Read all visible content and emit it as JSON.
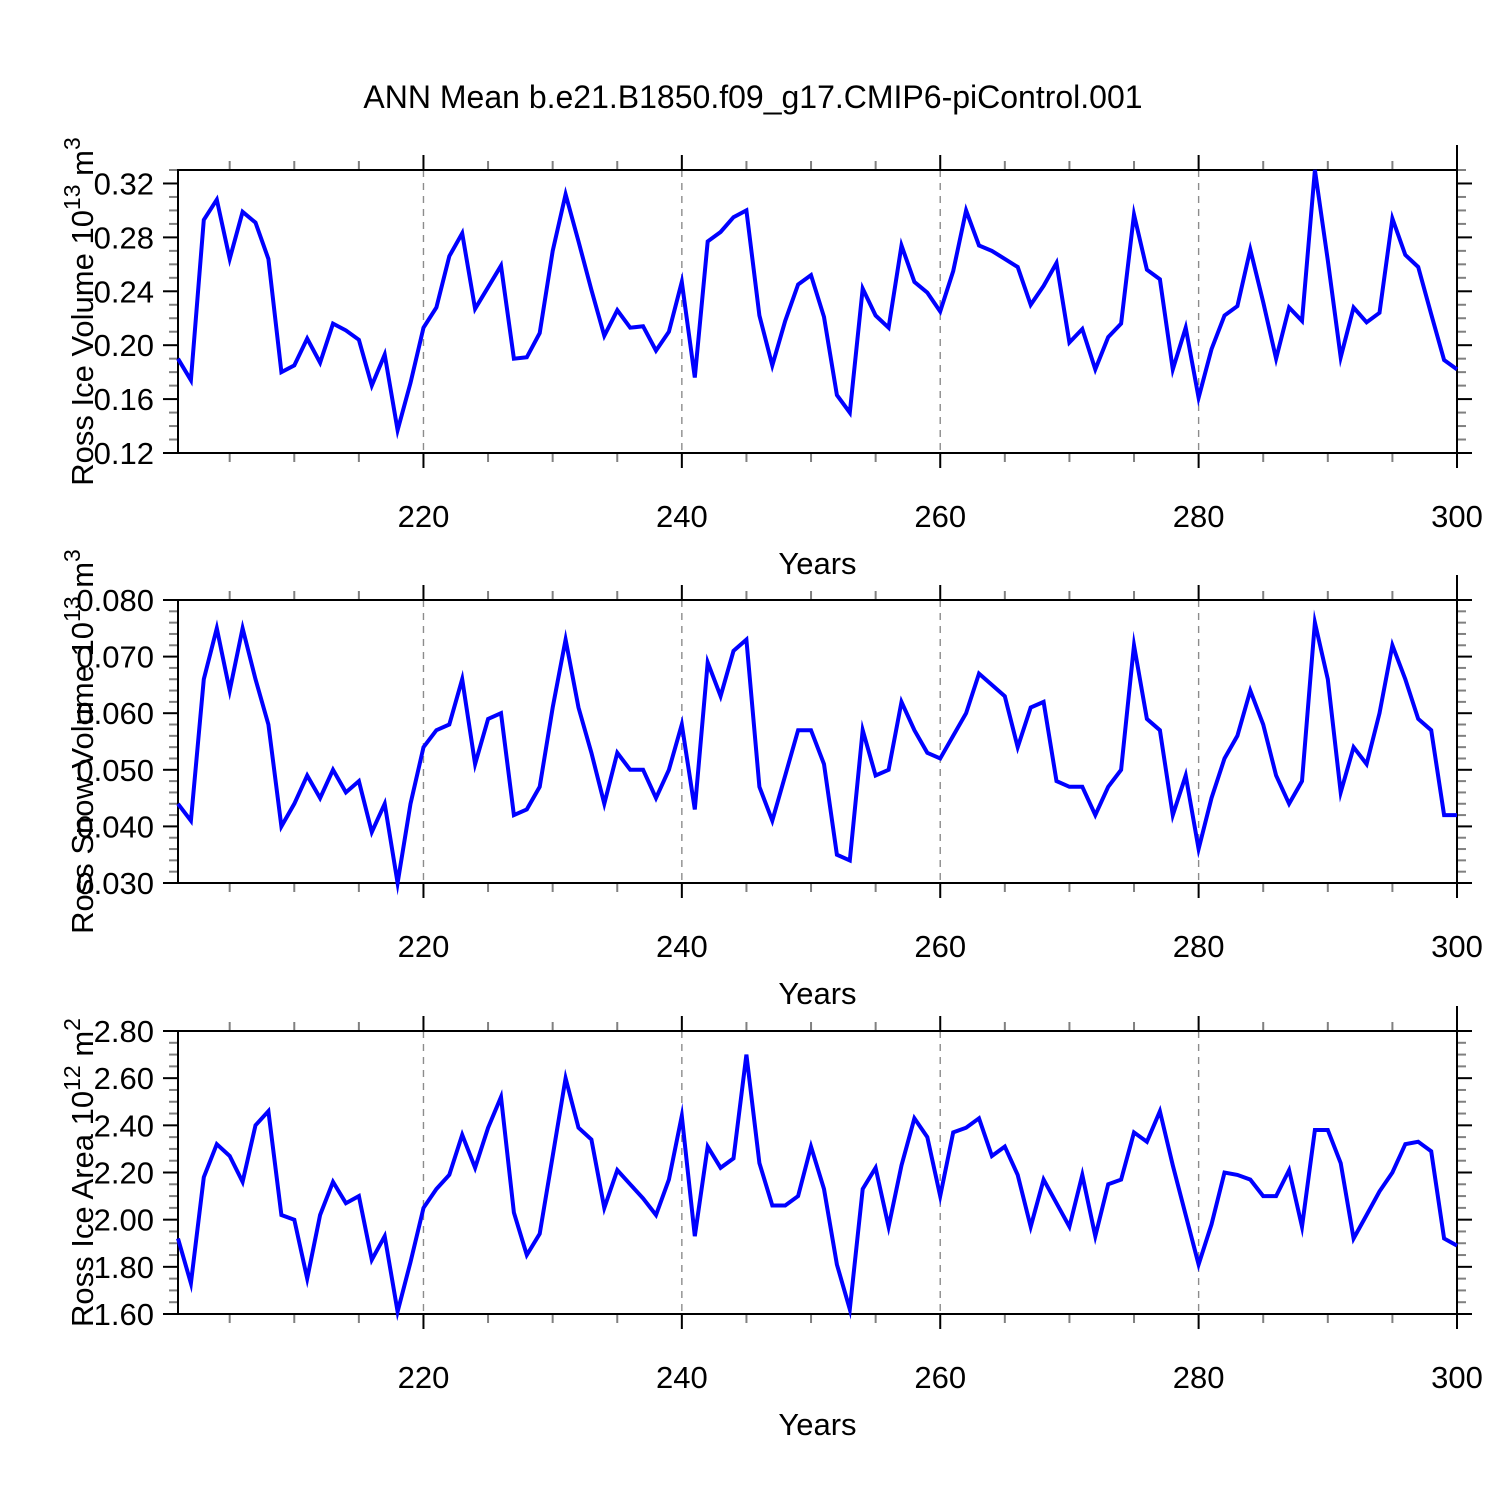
{
  "title": "ANN Mean b.e21.B1850.f09_g17.CMIP6-piControl.001",
  "colors": {
    "line": "#0000ff",
    "frame": "#000000",
    "major_tick": "#000000",
    "minor_tick": "#808080",
    "grid": "#8c8c8c",
    "text": "#000000",
    "background": "#ffffff"
  },
  "x_axis": {
    "label": "Years",
    "min": 201,
    "max": 300,
    "major_ticks": [
      220,
      240,
      260,
      280,
      300
    ],
    "minor_step": 5,
    "grid_years": [
      220,
      240,
      260,
      280
    ]
  },
  "chart_data": [
    {
      "type": "line",
      "name": "ross-ice-volume",
      "ylabel": "Ross Ice Volume 10^13 m^3",
      "ylabel_parts": [
        {
          "t": "Ross Ice Volume 10"
        },
        {
          "t": "13",
          "sup": true
        },
        {
          "t": " m"
        },
        {
          "t": "3",
          "sup": true
        }
      ],
      "xlabel": "Years",
      "ylim": [
        0.12,
        0.33
      ],
      "ytick_start": 0.12,
      "ytick_step": 0.04,
      "yminor_step": 0.01,
      "ytick_decimals": 2,
      "x_start": 201,
      "x_step": 1,
      "values": [
        0.19,
        0.174,
        0.293,
        0.308,
        0.264,
        0.299,
        0.291,
        0.264,
        0.18,
        0.185,
        0.205,
        0.187,
        0.216,
        0.211,
        0.204,
        0.17,
        0.193,
        0.137,
        0.172,
        0.213,
        0.228,
        0.266,
        0.283,
        0.227,
        0.243,
        0.259,
        0.19,
        0.191,
        0.209,
        0.27,
        0.312,
        0.277,
        0.241,
        0.207,
        0.226,
        0.213,
        0.214,
        0.196,
        0.21,
        0.247,
        0.176,
        0.277,
        0.284,
        0.295,
        0.3,
        0.222,
        0.185,
        0.218,
        0.245,
        0.252,
        0.221,
        0.163,
        0.15,
        0.242,
        0.222,
        0.213,
        0.274,
        0.247,
        0.239,
        0.225,
        0.255,
        0.3,
        0.274,
        0.27,
        0.264,
        0.258,
        0.23,
        0.244,
        0.261,
        0.202,
        0.212,
        0.182,
        0.206,
        0.216,
        0.297,
        0.256,
        0.249,
        0.182,
        0.213,
        0.161,
        0.197,
        0.222,
        0.229,
        0.271,
        0.232,
        0.19,
        0.228,
        0.218,
        0.33,
        0.263,
        0.191,
        0.228,
        0.217,
        0.224,
        0.294,
        0.267,
        0.258,
        0.223,
        0.189,
        0.182
      ]
    },
    {
      "type": "line",
      "name": "ross-snow-volume",
      "ylabel": "Ross Snow Volume 10^13 m^3",
      "ylabel_parts": [
        {
          "t": "Ross Snow Volume 10"
        },
        {
          "t": "13",
          "sup": true
        },
        {
          "t": " m"
        },
        {
          "t": "3",
          "sup": true
        }
      ],
      "xlabel": "Years",
      "ylim": [
        0.03,
        0.08
      ],
      "ytick_start": 0.03,
      "ytick_step": 0.01,
      "yminor_step": 0.002,
      "ytick_decimals": 3,
      "x_start": 201,
      "x_step": 1,
      "values": [
        0.044,
        0.041,
        0.066,
        0.075,
        0.064,
        0.075,
        0.066,
        0.058,
        0.04,
        0.044,
        0.049,
        0.045,
        0.05,
        0.046,
        0.048,
        0.039,
        0.044,
        0.03,
        0.044,
        0.054,
        0.057,
        0.058,
        0.066,
        0.051,
        0.059,
        0.06,
        0.042,
        0.043,
        0.047,
        0.061,
        0.073,
        0.061,
        0.053,
        0.044,
        0.053,
        0.05,
        0.05,
        0.045,
        0.05,
        0.058,
        0.043,
        0.069,
        0.063,
        0.071,
        0.073,
        0.047,
        0.041,
        0.049,
        0.057,
        0.057,
        0.051,
        0.035,
        0.034,
        0.057,
        0.049,
        0.05,
        0.062,
        0.057,
        0.053,
        0.052,
        0.056,
        0.06,
        0.067,
        0.065,
        0.063,
        0.054,
        0.061,
        0.062,
        0.048,
        0.047,
        0.047,
        0.042,
        0.047,
        0.05,
        0.072,
        0.059,
        0.057,
        0.042,
        0.049,
        0.036,
        0.045,
        0.052,
        0.056,
        0.064,
        0.058,
        0.049,
        0.044,
        0.048,
        0.076,
        0.066,
        0.046,
        0.054,
        0.051,
        0.06,
        0.072,
        0.066,
        0.059,
        0.057,
        0.042,
        0.042
      ]
    },
    {
      "type": "line",
      "name": "ross-ice-area",
      "ylabel": "Ross Ice Area 10^12 m^2",
      "ylabel_parts": [
        {
          "t": "Ross Ice Area 10"
        },
        {
          "t": "12",
          "sup": true
        },
        {
          "t": " m"
        },
        {
          "t": "2",
          "sup": true
        }
      ],
      "xlabel": "Years",
      "ylim": [
        1.6,
        2.8
      ],
      "ytick_start": 1.6,
      "ytick_step": 0.2,
      "yminor_step": 0.05,
      "ytick_decimals": 2,
      "x_start": 201,
      "x_step": 1,
      "values": [
        1.92,
        1.73,
        2.18,
        2.32,
        2.27,
        2.16,
        2.4,
        2.46,
        2.02,
        2.0,
        1.75,
        2.02,
        2.16,
        2.07,
        2.1,
        1.83,
        1.93,
        1.61,
        1.82,
        2.05,
        2.13,
        2.19,
        2.36,
        2.22,
        2.39,
        2.52,
        2.03,
        1.85,
        1.94,
        2.27,
        2.6,
        2.39,
        2.34,
        2.05,
        2.21,
        2.15,
        2.09,
        2.02,
        2.17,
        2.44,
        1.93,
        2.31,
        2.22,
        2.26,
        2.7,
        2.24,
        2.06,
        2.06,
        2.1,
        2.31,
        2.13,
        1.81,
        1.62,
        2.13,
        2.22,
        1.97,
        2.23,
        2.43,
        2.35,
        2.1,
        2.37,
        2.39,
        2.43,
        2.27,
        2.31,
        2.19,
        1.97,
        2.17,
        2.07,
        1.97,
        2.19,
        1.93,
        2.15,
        2.17,
        2.37,
        2.33,
        2.46,
        2.23,
        2.02,
        1.81,
        1.98,
        2.2,
        2.19,
        2.17,
        2.1,
        2.1,
        2.21,
        1.97,
        2.38,
        2.38,
        2.24,
        1.92,
        2.02,
        2.12,
        2.2,
        2.32,
        2.33,
        2.29,
        1.92,
        1.89
      ]
    }
  ]
}
